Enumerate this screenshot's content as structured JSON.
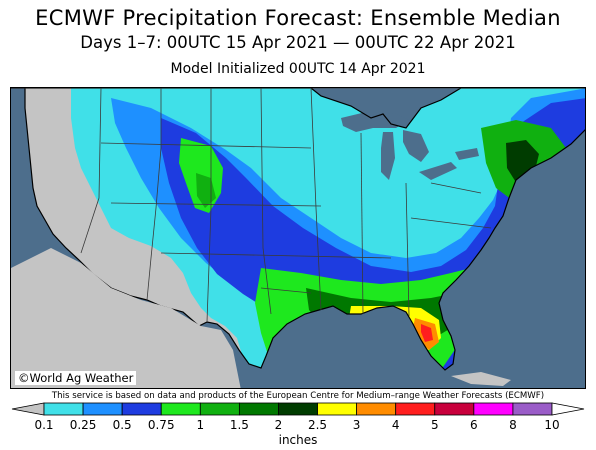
{
  "header": {
    "title": "ECMWF Precipitation Forecast: Ensemble Median",
    "subtitle": "Days 1–7: 00UTC 15 Apr 2021 — 00UTC 22 Apr 2021",
    "init": "Model Initialized 00UTC 14 Apr 2021"
  },
  "map": {
    "credit": "©World Ag Weather",
    "ocean_color": "#4d6e8c",
    "land_dry_color": "#c4c4c4",
    "great_lakes_color": "#4d6e8c"
  },
  "disclaimer": "This service is based on data and products of the European Centre for Medium–range Weather Forecasts (ECMWF)",
  "legend": {
    "units": "inches",
    "ticks": [
      "0.1",
      "0.25",
      "0.5",
      "0.75",
      "1",
      "1.5",
      "2",
      "2.5",
      "3",
      "4",
      "5",
      "6",
      "8",
      "10"
    ],
    "colors": [
      "#40e0e8",
      "#1e90ff",
      "#1e3ce0",
      "#1ee81e",
      "#10b010",
      "#007800",
      "#003c00",
      "#ffff00",
      "#ff8c00",
      "#ff1e1e",
      "#c8003c",
      "#ff00ff",
      "#9a5cc8"
    ],
    "below_color": "#c4c4c4",
    "above_color": "#ffffff"
  }
}
